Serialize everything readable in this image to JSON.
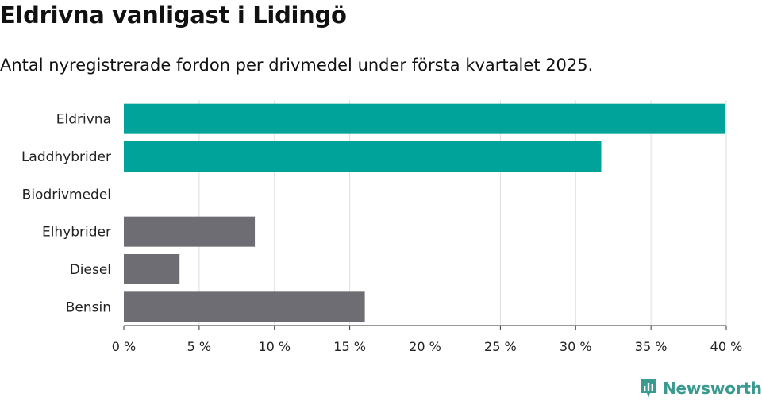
{
  "title": "Eldrivna vanligast i Lidingö",
  "subtitle": "Antal nyregistrerade fordon per drivmedel under första kvartalet 2025.",
  "brand": {
    "name": "Newsworthy",
    "icon": "newsworthy-logo-icon",
    "color": "#3a9a8f"
  },
  "colors": {
    "highlight": "#00a39a",
    "other": "#6e6d73",
    "grid": "#dddddd",
    "axis": "#333333"
  },
  "chart_data": {
    "type": "bar",
    "orientation": "horizontal",
    "categories": [
      "Eldrivna",
      "Laddhybrider",
      "Biodrivmedel",
      "Elhybrider",
      "Diesel",
      "Bensin"
    ],
    "values": [
      39.9,
      31.7,
      0,
      8.7,
      3.7,
      16.0
    ],
    "highlight": [
      true,
      true,
      false,
      false,
      false,
      false
    ],
    "unit": "%",
    "xlim": [
      0,
      40
    ],
    "xticks": [
      0,
      5,
      10,
      15,
      20,
      25,
      30,
      35,
      40
    ],
    "xtick_labels": [
      "0 %",
      "5 %",
      "10 %",
      "15 %",
      "20 %",
      "25 %",
      "30 %",
      "35 %",
      "40 %"
    ],
    "grid": true
  }
}
